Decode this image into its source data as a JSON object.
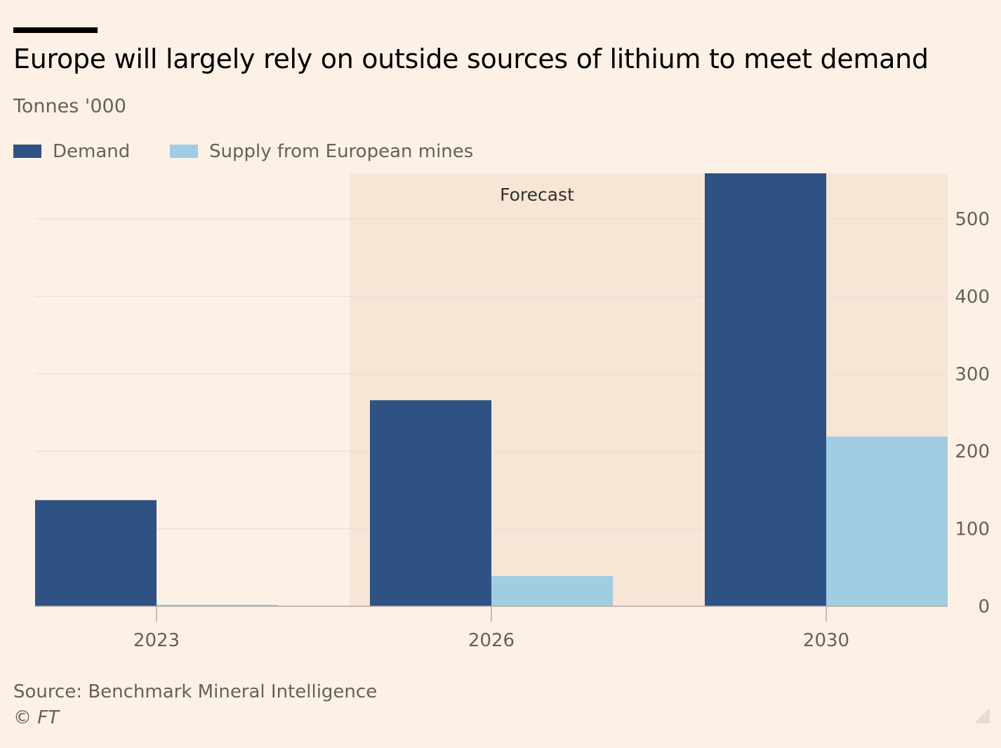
{
  "header": {
    "title": "Europe will largely rely on outside sources of lithium to meet demand",
    "subtitle": "Tonnes '000"
  },
  "legend": {
    "items": [
      {
        "label": "Demand",
        "color": "#2e5283"
      },
      {
        "label": "Supply from European mines",
        "color": "#a1cde2"
      }
    ]
  },
  "footer": {
    "source": "Source: Benchmark Mineral Intelligence",
    "copyright": "© FT"
  },
  "chart_data": {
    "type": "bar",
    "categories": [
      "2023",
      "2026",
      "2030"
    ],
    "series": [
      {
        "name": "Demand",
        "color": "#2e5283",
        "values": [
          137,
          266,
          560
        ]
      },
      {
        "name": "Supply from European mines",
        "color": "#a1cde2",
        "values": [
          2,
          39,
          219
        ]
      }
    ],
    "ylim": [
      0,
      560
    ],
    "yticks": [
      0,
      100,
      200,
      300,
      400,
      500
    ],
    "y_axis_side": "right",
    "grid": true,
    "legend_position": "top-left",
    "forecast_label": "Forecast",
    "forecast_categories": [
      "2026",
      "2030"
    ],
    "forecast_color": "#f7e5d6"
  }
}
